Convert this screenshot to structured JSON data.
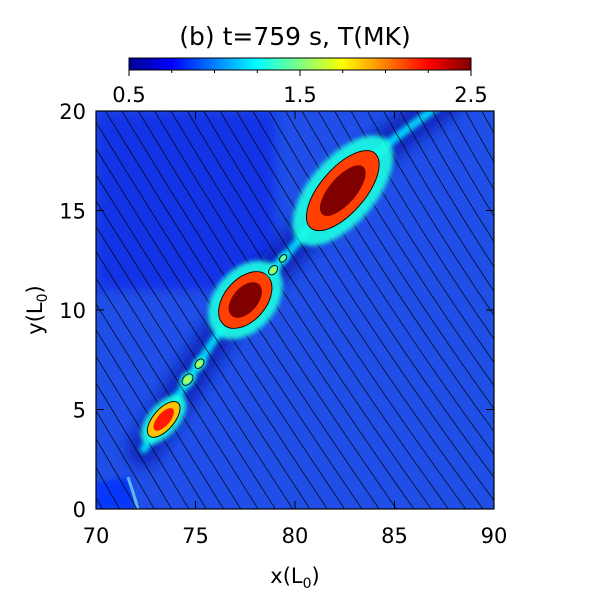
{
  "chart_data": {
    "type": "heatmap",
    "title": "(b) t=759 s, T(MK)",
    "xlabel": "x(L",
    "xlabel_sub": "0",
    "xlabel_close": ")",
    "ylabel": "y(L",
    "ylabel_sub": "0",
    "ylabel_close": ")",
    "xlim": [
      70,
      90
    ],
    "ylim": [
      0,
      20
    ],
    "x_ticks": [
      70,
      75,
      80,
      85,
      90
    ],
    "y_ticks": [
      0,
      5,
      10,
      15,
      20
    ],
    "x_tick_labels": [
      "70",
      "75",
      "80",
      "85",
      "90"
    ],
    "y_tick_labels": [
      "0",
      "5",
      "10",
      "15",
      "20"
    ],
    "colorbar": {
      "range": [
        0.5,
        2.5
      ],
      "ticks": [
        0.5,
        1.5,
        2.5
      ],
      "tick_labels": [
        "0.5",
        "1.5",
        "2.5"
      ],
      "colormap": "jet",
      "placement": "top"
    },
    "current_sheet": {
      "path": [
        [
          72.4,
          3.0
        ],
        [
          74.2,
          5.8
        ],
        [
          76.0,
          8.6
        ],
        [
          77.8,
          10.8
        ],
        [
          79.6,
          12.8
        ],
        [
          82.0,
          15.6
        ],
        [
          84.6,
          18.3
        ],
        [
          87.5,
          20.5
        ]
      ],
      "background_T": 0.6,
      "sheet_T": 1.2
    },
    "plasmoids": [
      {
        "x": 73.4,
        "y": 4.5,
        "T_peak": 2.2,
        "length": 2.0,
        "width": 0.7
      },
      {
        "x": 74.6,
        "y": 6.5,
        "T_peak": 1.6,
        "length": 0.6,
        "width": 0.3
      },
      {
        "x": 75.2,
        "y": 7.3,
        "T_peak": 1.6,
        "length": 0.5,
        "width": 0.25
      },
      {
        "x": 77.5,
        "y": 10.5,
        "T_peak": 2.5,
        "length": 3.0,
        "width": 1.4
      },
      {
        "x": 78.9,
        "y": 12.0,
        "T_peak": 1.6,
        "length": 0.5,
        "width": 0.25
      },
      {
        "x": 79.4,
        "y": 12.6,
        "T_peak": 1.5,
        "length": 0.4,
        "width": 0.2
      },
      {
        "x": 82.4,
        "y": 16.0,
        "T_peak": 2.5,
        "length": 4.5,
        "width": 1.5
      }
    ],
    "grid": false
  },
  "colors": {
    "background": "#ffffff",
    "axis": "#000000",
    "field_lines": "#000000"
  }
}
